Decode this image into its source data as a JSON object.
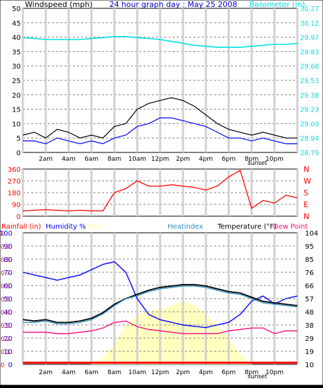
{
  "panel1": {
    "left_title": "Windspeed (mph)",
    "center_title": "24 hour graph day : May 25 2008",
    "right_title": "Barometer (in)",
    "left_ticks": [
      "0",
      "5",
      "10",
      "15",
      "20",
      "25",
      "30",
      "35",
      "40",
      "45",
      "50"
    ],
    "right_ticks": [
      "28.79",
      "28.94",
      "29.09",
      "29.23",
      "29.38",
      "29.53",
      "29.68",
      "29.83",
      "29.97",
      "30.12",
      "30.27"
    ]
  },
  "panel2": {
    "left_ticks": [
      "0",
      "90",
      "180",
      "270",
      "360"
    ],
    "right_letters": [
      "N",
      "W",
      "S",
      "E",
      "N"
    ]
  },
  "panel3": {
    "labels": {
      "rainfall": "Rainfall (in)",
      "humidity": "Humidity %",
      "solar": "Solar",
      "heatindex": "Heatindex",
      "temperature": "Temperature (°F)",
      "dewpoint": "Dew Point"
    },
    "rain_ticks": [
      "0",
      "0.1",
      "0.2",
      "0.3",
      "0.4",
      "0.5",
      "0.6",
      "0.7",
      "0.8",
      "0.9",
      "1"
    ],
    "hum_ticks": [
      "0",
      "10",
      "20",
      "30",
      "40",
      "50",
      "60",
      "70",
      "80",
      "90",
      "100"
    ],
    "temp_ticks": [
      "10",
      "19",
      "29",
      "38",
      "48",
      "57",
      "66",
      "76",
      "85",
      "95",
      "104"
    ]
  },
  "time_labels": [
    "2am",
    "4am",
    "6am",
    "8am",
    "10am",
    "12pm",
    "2pm",
    "4pm",
    "6pm",
    "8pm",
    "10pm"
  ],
  "sunset_label": "sunset",
  "colors": {
    "wind": "#0000ff",
    "gust": "#000000",
    "barometer": "#00e0e0",
    "direction": "#ff0000",
    "humidity": "#0000ff",
    "temperature": "#000000",
    "heatindex": "#3090c0",
    "dewpoint": "#ff1080",
    "solar": "#ffffc0",
    "rain": "#ff0000"
  },
  "chart_data": [
    {
      "type": "line",
      "title": "24 hour graph day : May 25 2008",
      "ylabel": "Windspeed (mph)",
      "y2label": "Barometer (in)",
      "ylim": [
        0,
        50
      ],
      "y2lim": [
        28.79,
        30.27
      ],
      "x_hours": [
        0,
        1,
        2,
        3,
        4,
        5,
        6,
        7,
        8,
        9,
        10,
        11,
        12,
        13,
        14,
        15,
        16,
        17,
        18,
        19,
        20,
        21,
        22,
        23,
        24
      ],
      "series": [
        {
          "name": "wind",
          "values": [
            4,
            4,
            3,
            5,
            4,
            3,
            4,
            3,
            5,
            6,
            9,
            10,
            12,
            12,
            11,
            10,
            9,
            7,
            5,
            5,
            4,
            5,
            4,
            3,
            3
          ]
        },
        {
          "name": "gust",
          "values": [
            6,
            7,
            5,
            8,
            7,
            5,
            6,
            5,
            9,
            10,
            15,
            17,
            18,
            19,
            18,
            16,
            13,
            10,
            8,
            7,
            6,
            7,
            6,
            5,
            5
          ]
        },
        {
          "name": "barometer",
          "values": [
            29.97,
            29.96,
            29.95,
            29.95,
            29.95,
            29.95,
            29.96,
            29.97,
            29.98,
            29.98,
            29.97,
            29.96,
            29.95,
            29.93,
            29.91,
            29.89,
            29.88,
            29.87,
            29.87,
            29.87,
            29.88,
            29.89,
            29.9,
            29.9,
            29.91
          ]
        }
      ]
    },
    {
      "type": "line",
      "ylabel": "Wind direction",
      "ylim": [
        0,
        360
      ],
      "x_hours": [
        0,
        1,
        2,
        3,
        4,
        5,
        6,
        7,
        8,
        9,
        10,
        11,
        12,
        13,
        14,
        15,
        16,
        17,
        18,
        19,
        20,
        21,
        22,
        23,
        24
      ],
      "series": [
        {
          "name": "direction",
          "values": [
            40,
            45,
            50,
            45,
            40,
            45,
            40,
            40,
            180,
            210,
            270,
            230,
            230,
            240,
            230,
            220,
            200,
            230,
            300,
            350,
            60,
            120,
            100,
            160,
            140
          ]
        }
      ]
    },
    {
      "type": "line",
      "ylabel": "Humidity %",
      "y2label": "Temperature (°F)",
      "ylim": [
        0,
        100
      ],
      "y2lim": [
        10,
        104
      ],
      "x_hours": [
        0,
        1,
        2,
        3,
        4,
        5,
        6,
        7,
        8,
        9,
        10,
        11,
        12,
        13,
        14,
        15,
        16,
        17,
        18,
        19,
        20,
        21,
        22,
        23,
        24
      ],
      "series": [
        {
          "name": "humidity",
          "values": [
            70,
            68,
            66,
            64,
            66,
            68,
            72,
            76,
            78,
            70,
            50,
            38,
            34,
            32,
            30,
            29,
            28,
            30,
            32,
            38,
            48,
            52,
            46,
            50,
            52
          ]
        },
        {
          "name": "temperature",
          "values": [
            42,
            41,
            42,
            40,
            40,
            41,
            43,
            47,
            53,
            57,
            60,
            63,
            65,
            66,
            67,
            67,
            66,
            64,
            62,
            61,
            58,
            55,
            54,
            53,
            52
          ]
        },
        {
          "name": "heatindex",
          "values": [
            40,
            40,
            41,
            39,
            39,
            40,
            42,
            46,
            52,
            57,
            59,
            62,
            64,
            65,
            66,
            66,
            65,
            63,
            61,
            60,
            57,
            54,
            53,
            52,
            51
          ]
        },
        {
          "name": "dewpoint",
          "values": [
            33,
            33,
            33,
            32,
            32,
            33,
            34,
            36,
            40,
            41,
            37,
            35,
            34,
            33,
            32,
            32,
            32,
            32,
            34,
            35,
            36,
            36,
            32,
            34,
            34
          ]
        },
        {
          "name": "solar",
          "values": [
            0,
            0,
            0,
            0,
            0,
            0,
            0,
            5,
            15,
            30,
            38,
            40,
            42,
            45,
            48,
            45,
            38,
            30,
            20,
            8,
            0,
            0,
            0,
            0,
            0
          ]
        },
        {
          "name": "rainfall",
          "values": [
            0,
            0,
            0,
            0,
            0,
            0,
            0,
            0,
            0,
            0,
            0,
            0,
            0,
            0,
            0,
            0,
            0,
            0,
            0,
            0,
            0,
            0,
            0,
            0,
            0
          ]
        }
      ]
    }
  ]
}
